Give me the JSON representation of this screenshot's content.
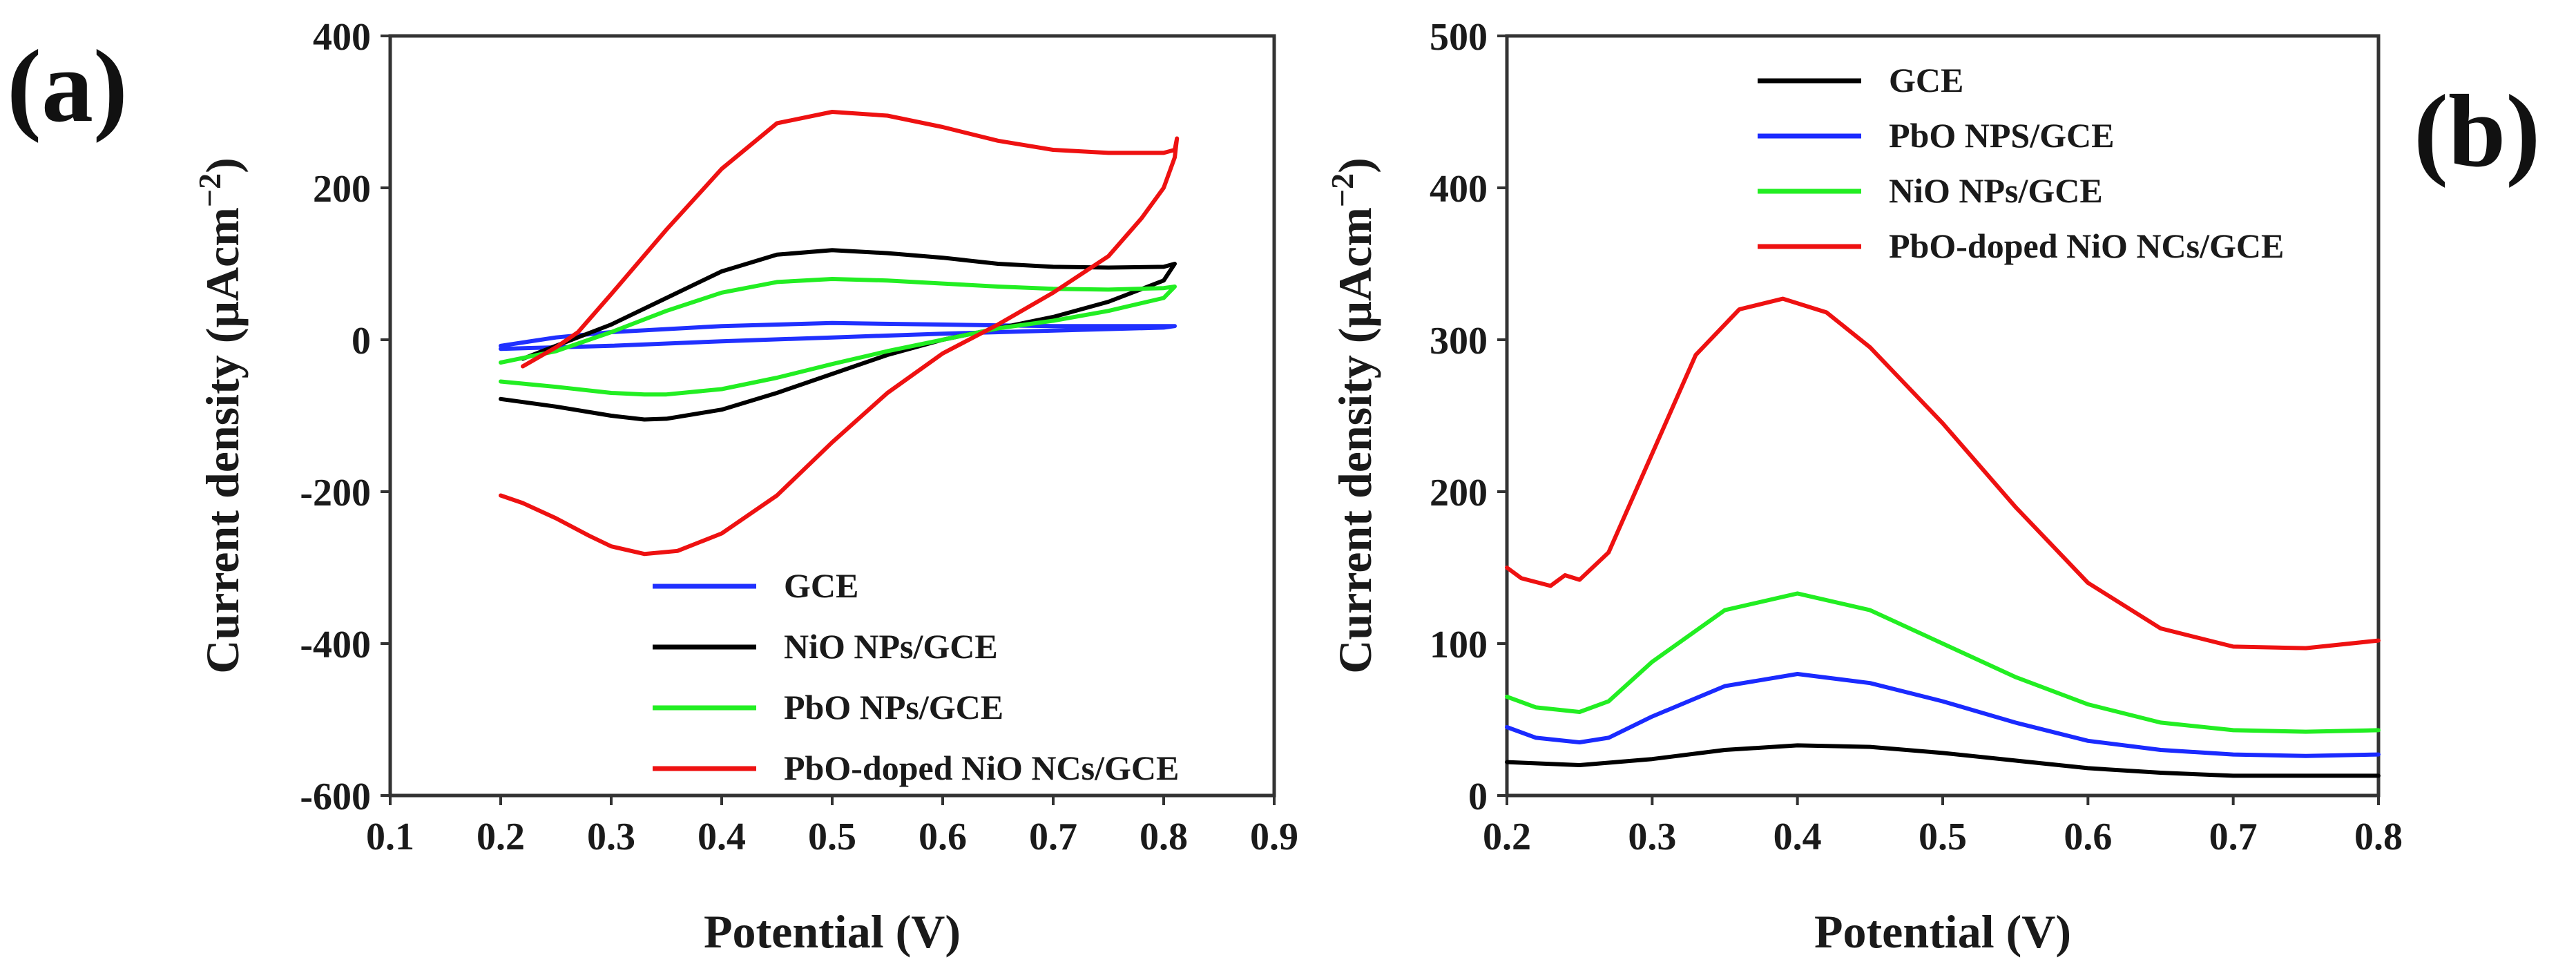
{
  "panels": {
    "a": {
      "label": "(a)"
    },
    "b": {
      "label": "(b)"
    }
  },
  "chart_data": [
    {
      "id": "a",
      "type": "line",
      "title": "",
      "xlabel": "Potential (V)",
      "ylabel": "Current density (μAcm",
      "ylabel_unit_exponent": "−2",
      "ylabel_close": ")",
      "xlim": [
        0.1,
        0.9
      ],
      "ylim": [
        -600,
        400
      ],
      "xticks": [
        0.1,
        0.2,
        0.3,
        0.4,
        0.5,
        0.6,
        0.7,
        0.8,
        0.9
      ],
      "xtick_labels": [
        "0.1",
        "0.2",
        "0.3",
        "0.4",
        "0.5",
        "0.6",
        "0.7",
        "0.8",
        "0.9"
      ],
      "yticks": [
        -600,
        -400,
        -200,
        0,
        200,
        400
      ],
      "ytick_labels": [
        "-600",
        "-400",
        "-200",
        "0",
        "200",
        "400"
      ],
      "legend_position": "bottom-right",
      "series": [
        {
          "name": "GCE",
          "color": "#2030ff",
          "x": [
            0.2,
            0.25,
            0.3,
            0.4,
            0.5,
            0.6,
            0.7,
            0.8,
            0.81,
            0.8,
            0.7,
            0.6,
            0.5,
            0.4,
            0.3,
            0.25,
            0.2
          ],
          "y": [
            -12,
            -10,
            -8,
            -2,
            3,
            8,
            12,
            16,
            18,
            18,
            18,
            20,
            22,
            18,
            10,
            3,
            -8
          ]
        },
        {
          "name": "NiO NPs/GCE",
          "color": "#000000",
          "x": [
            0.2,
            0.25,
            0.3,
            0.33,
            0.35,
            0.4,
            0.45,
            0.5,
            0.55,
            0.6,
            0.65,
            0.7,
            0.75,
            0.8,
            0.81,
            0.8,
            0.75,
            0.7,
            0.65,
            0.6,
            0.55,
            0.5,
            0.45,
            0.4,
            0.35,
            0.3,
            0.25,
            0.22
          ],
          "y": [
            -78,
            -88,
            -100,
            -105,
            -104,
            -92,
            -70,
            -45,
            -20,
            0,
            15,
            30,
            50,
            78,
            100,
            96,
            95,
            96,
            100,
            108,
            114,
            118,
            112,
            90,
            55,
            20,
            -8,
            -25
          ]
        },
        {
          "name": "PbO NPs/GCE",
          "color": "#22ee22",
          "x": [
            0.2,
            0.25,
            0.3,
            0.33,
            0.35,
            0.4,
            0.45,
            0.5,
            0.55,
            0.6,
            0.65,
            0.7,
            0.75,
            0.8,
            0.81,
            0.8,
            0.75,
            0.7,
            0.65,
            0.6,
            0.55,
            0.5,
            0.45,
            0.4,
            0.35,
            0.3,
            0.25,
            0.2
          ],
          "y": [
            -55,
            -62,
            -70,
            -72,
            -72,
            -65,
            -50,
            -32,
            -15,
            0,
            15,
            25,
            38,
            55,
            70,
            68,
            66,
            67,
            70,
            74,
            78,
            80,
            76,
            62,
            38,
            10,
            -15,
            -30
          ]
        },
        {
          "name": "PbO-doped NiO NCs/GCE",
          "color": "#ee1111",
          "x": [
            0.2,
            0.22,
            0.25,
            0.28,
            0.3,
            0.33,
            0.36,
            0.4,
            0.45,
            0.5,
            0.55,
            0.6,
            0.65,
            0.7,
            0.75,
            0.78,
            0.8,
            0.81,
            0.812,
            0.81,
            0.8,
            0.75,
            0.7,
            0.65,
            0.6,
            0.55,
            0.5,
            0.45,
            0.4,
            0.35,
            0.3,
            0.27,
            0.25,
            0.22
          ],
          "y": [
            -205,
            -215,
            -235,
            -258,
            -272,
            -282,
            -278,
            -255,
            -205,
            -135,
            -70,
            -18,
            20,
            62,
            110,
            160,
            200,
            240,
            265,
            250,
            246,
            246,
            250,
            262,
            280,
            295,
            300,
            285,
            225,
            145,
            60,
            10,
            -10,
            -35
          ]
        }
      ]
    },
    {
      "id": "b",
      "type": "line",
      "title": "",
      "xlabel": "Potential (V)",
      "ylabel": "Current density (μAcm",
      "ylabel_unit_exponent": "−2",
      "ylabel_close": ")",
      "xlim": [
        0.2,
        0.8
      ],
      "ylim": [
        0,
        500
      ],
      "xticks": [
        0.2,
        0.3,
        0.4,
        0.5,
        0.6,
        0.7,
        0.8
      ],
      "xtick_labels": [
        "0.2",
        "0.3",
        "0.4",
        "0.5",
        "0.6",
        "0.7",
        "0.8"
      ],
      "yticks": [
        0,
        100,
        200,
        300,
        400,
        500
      ],
      "ytick_labels": [
        "0",
        "100",
        "200",
        "300",
        "400",
        "500"
      ],
      "legend_position": "top-center",
      "series": [
        {
          "name": "GCE",
          "color": "#000000",
          "x": [
            0.2,
            0.25,
            0.3,
            0.35,
            0.4,
            0.45,
            0.5,
            0.55,
            0.6,
            0.65,
            0.7,
            0.75,
            0.8
          ],
          "y": [
            22,
            20,
            24,
            30,
            33,
            32,
            28,
            23,
            18,
            15,
            13,
            13,
            13
          ]
        },
        {
          "name": "PbO NPS/GCE",
          "color": "#1a2aff",
          "x": [
            0.2,
            0.22,
            0.25,
            0.27,
            0.3,
            0.35,
            0.4,
            0.45,
            0.5,
            0.55,
            0.6,
            0.65,
            0.7,
            0.75,
            0.8
          ],
          "y": [
            45,
            38,
            35,
            38,
            52,
            72,
            80,
            74,
            62,
            48,
            36,
            30,
            27,
            26,
            27
          ]
        },
        {
          "name": "NiO NPs/GCE",
          "color": "#22ee22",
          "x": [
            0.2,
            0.22,
            0.25,
            0.27,
            0.3,
            0.35,
            0.4,
            0.45,
            0.5,
            0.55,
            0.6,
            0.65,
            0.7,
            0.75,
            0.8
          ],
          "y": [
            65,
            58,
            55,
            62,
            88,
            122,
            133,
            122,
            100,
            78,
            60,
            48,
            43,
            42,
            43
          ]
        },
        {
          "name": "PbO-doped NiO NCs/GCE",
          "color": "#ee1111",
          "x": [
            0.2,
            0.21,
            0.23,
            0.24,
            0.25,
            0.27,
            0.3,
            0.33,
            0.36,
            0.39,
            0.42,
            0.45,
            0.5,
            0.55,
            0.6,
            0.65,
            0.7,
            0.75,
            0.8
          ],
          "y": [
            150,
            143,
            138,
            145,
            142,
            160,
            225,
            290,
            320,
            327,
            318,
            295,
            245,
            190,
            140,
            110,
            98,
            97,
            102
          ]
        }
      ]
    }
  ]
}
